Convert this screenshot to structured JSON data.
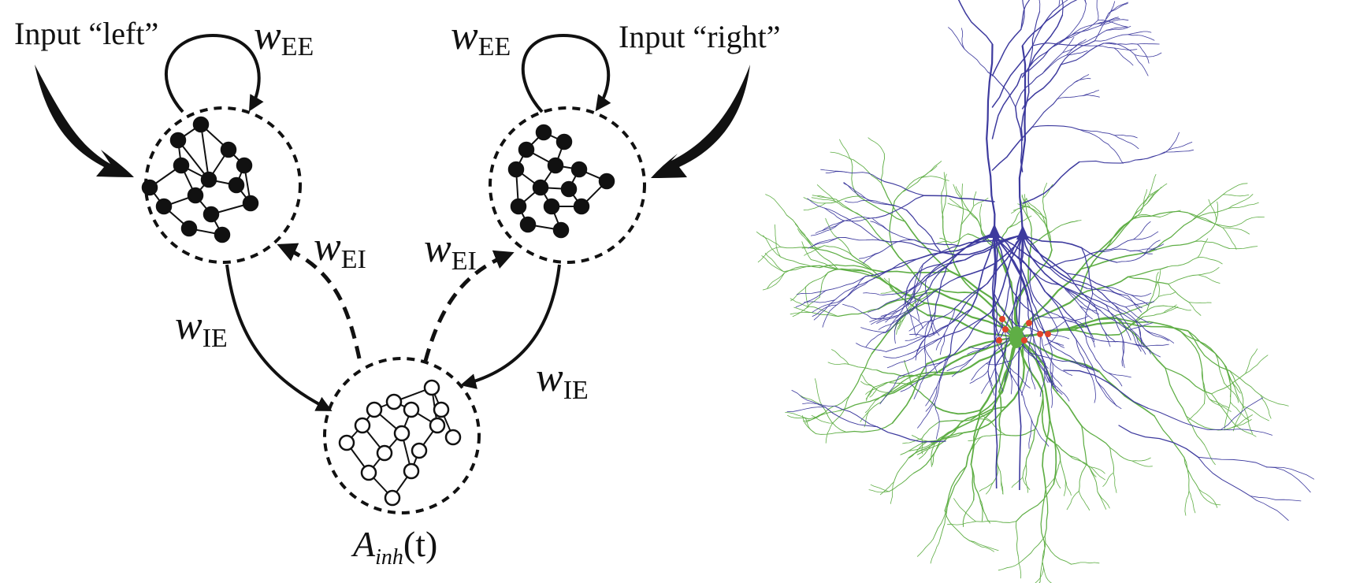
{
  "diagram": {
    "input_left_label": "Input “left”",
    "input_right_label": "Input “right”",
    "w_symbol": "w",
    "sub_EE": "EE",
    "sub_EI": "EI",
    "sub_IE": "IE",
    "a_inh_symbol": "A",
    "a_inh_sub": "inh",
    "a_inh_arg": "(t)"
  },
  "neuron_image": {
    "colors": {
      "pyramidal": "#3d3a9e",
      "interneuron": "#5fae45",
      "synapse": "#e0442a"
    }
  },
  "colors": {
    "ink": "#111111",
    "background": "#ffffff"
  }
}
